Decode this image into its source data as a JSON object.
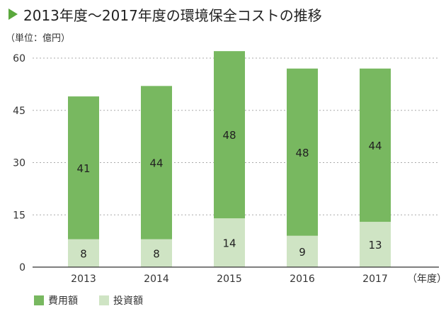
{
  "title": "2013年度〜2017年度の環境保全コストの推移",
  "chart_data": {
    "type": "bar",
    "stacked": true,
    "title": "2013年度〜2017年度の環境保全コストの推移",
    "unit_label": "（単位：億円）",
    "xlabel": "（年度）",
    "ylabel": "",
    "categories": [
      "2013",
      "2014",
      "2015",
      "2016",
      "2017"
    ],
    "series": [
      {
        "name": "投資額",
        "values": [
          8,
          8,
          14,
          9,
          13
        ],
        "color": "#cfe4c4"
      },
      {
        "name": "費用額",
        "values": [
          41,
          44,
          48,
          48,
          44
        ],
        "color": "#78b860"
      }
    ],
    "ylim": [
      0,
      60
    ],
    "yticks": [
      0,
      15,
      30,
      45,
      60
    ],
    "grid": true,
    "legend_position": "bottom-left"
  },
  "legend": {
    "items": [
      {
        "label": "費用額",
        "color": "#78b860"
      },
      {
        "label": "投資額",
        "color": "#cfe4c4"
      }
    ]
  }
}
